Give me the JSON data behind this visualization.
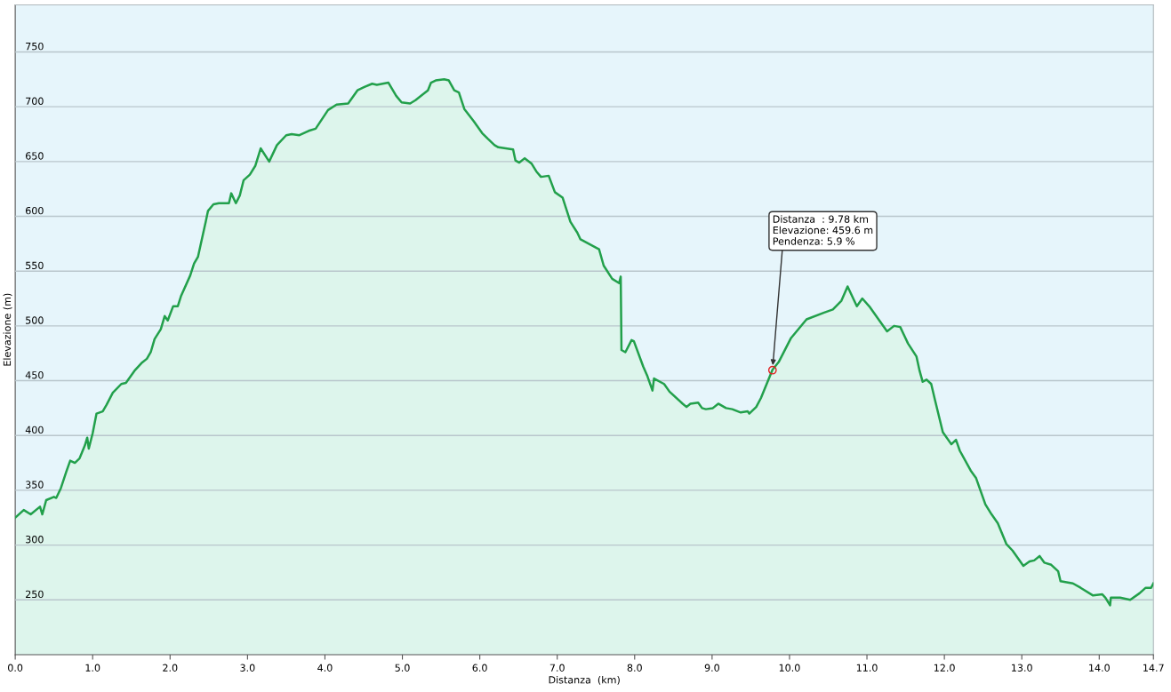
{
  "chart_data": {
    "type": "area",
    "xlabel": "Distanza  (km)",
    "ylabel": "Elevazione (m)",
    "xlim": [
      0,
      14.7
    ],
    "ylim": [
      200,
      793
    ],
    "xticks": [
      {
        "value": 0,
        "label": "0.0"
      },
      {
        "value": 1,
        "label": "1.0"
      },
      {
        "value": 2,
        "label": "2.0"
      },
      {
        "value": 3,
        "label": "3.0"
      },
      {
        "value": 4,
        "label": "4.0"
      },
      {
        "value": 5,
        "label": "5.0"
      },
      {
        "value": 6,
        "label": "6.0"
      },
      {
        "value": 7,
        "label": "7.0"
      },
      {
        "value": 8,
        "label": "8.0"
      },
      {
        "value": 9,
        "label": "9.0"
      },
      {
        "value": 10,
        "label": "10.0"
      },
      {
        "value": 11,
        "label": "11.0"
      },
      {
        "value": 12,
        "label": "12.0"
      },
      {
        "value": 13,
        "label": "13.0"
      },
      {
        "value": 14,
        "label": "14.0"
      },
      14.7
    ],
    "yticks": [
      250,
      300,
      350,
      400,
      450,
      500,
      550,
      600,
      650,
      700,
      750
    ],
    "grid": "y",
    "marker": "none",
    "line_style": "solid",
    "series": [
      {
        "color": "#22a04b",
        "x": [
          0.0,
          0.11,
          0.2,
          0.32,
          0.35,
          0.4,
          0.5,
          0.53,
          0.59,
          0.66,
          0.71,
          0.77,
          0.83,
          0.9,
          0.93,
          0.95,
          1.0,
          1.05,
          1.13,
          1.18,
          1.26,
          1.37,
          1.43,
          1.54,
          1.63,
          1.7,
          1.75,
          1.8,
          1.88,
          1.93,
          1.97,
          2.04,
          2.1,
          2.14,
          2.26,
          2.31,
          2.36,
          2.46,
          2.49,
          2.56,
          2.63,
          2.76,
          2.79,
          2.85,
          2.9,
          2.95,
          3.03,
          3.1,
          3.17,
          3.28,
          3.38,
          3.5,
          3.57,
          3.67,
          3.79,
          3.88,
          4.04,
          4.15,
          4.3,
          4.42,
          4.51,
          4.61,
          4.67,
          4.82,
          4.92,
          4.99,
          5.1,
          5.17,
          5.26,
          5.33,
          5.37,
          5.43,
          5.54,
          5.6,
          5.67,
          5.73,
          5.8,
          5.92,
          6.03,
          6.1,
          6.19,
          6.24,
          6.43,
          6.46,
          6.51,
          6.58,
          6.67,
          6.73,
          6.79,
          6.89,
          6.97,
          7.07,
          7.17,
          7.26,
          7.3,
          7.54,
          7.6,
          7.71,
          7.8,
          7.82,
          7.83,
          7.88,
          7.96,
          7.99,
          8.11,
          8.16,
          8.23,
          8.25,
          8.38,
          8.45,
          8.62,
          8.67,
          8.72,
          8.82,
          8.87,
          8.92,
          9.01,
          9.08,
          9.18,
          9.26,
          9.37,
          9.46,
          9.48,
          9.57,
          9.63,
          9.78,
          9.86,
          10.02,
          10.22,
          10.44,
          10.56,
          10.67,
          10.75,
          10.87,
          10.94,
          11.04,
          11.16,
          11.26,
          11.35,
          11.43,
          11.53,
          11.64,
          11.68,
          11.72,
          11.77,
          11.83,
          11.88,
          11.98,
          12.09,
          12.15,
          12.2,
          12.34,
          12.41,
          12.53,
          12.61,
          12.69,
          12.8,
          12.88,
          13.02,
          13.1,
          13.16,
          13.23,
          13.29,
          13.38,
          13.47,
          13.5,
          13.66,
          13.76,
          13.92,
          14.04,
          14.08,
          14.14,
          14.15,
          14.27,
          14.4,
          14.52,
          14.6,
          14.67,
          14.7
        ],
        "values": [
          325,
          332,
          328,
          335,
          328,
          341,
          344,
          343,
          352,
          367,
          377,
          375,
          379,
          391,
          398,
          388,
          402,
          420,
          422,
          428,
          439,
          447,
          448,
          459,
          466,
          470,
          476,
          488,
          497,
          509,
          505,
          518,
          518,
          527,
          546,
          557,
          563,
          595,
          605,
          611,
          612,
          612,
          621,
          612,
          619,
          633,
          638,
          646,
          662,
          650,
          665,
          674,
          675,
          674,
          678,
          680,
          697,
          702,
          703,
          715,
          718,
          721,
          720,
          722,
          710,
          704,
          703,
          706,
          711,
          715,
          722,
          724,
          725,
          724,
          715,
          713,
          698,
          687,
          676,
          671,
          665,
          663,
          661,
          651,
          649,
          653,
          648,
          641,
          636,
          637,
          622,
          617,
          595,
          585,
          579,
          570,
          555,
          543,
          539,
          545,
          478,
          476,
          487,
          486,
          463,
          455,
          441,
          452,
          447,
          440,
          429,
          426,
          429,
          430,
          425,
          424,
          425,
          429,
          425,
          424,
          421,
          422,
          420,
          426,
          434,
          460,
          467,
          489,
          506,
          512,
          515,
          523,
          536,
          518,
          525,
          517,
          505,
          495,
          500,
          499,
          484,
          472,
          459,
          449,
          451,
          447,
          432,
          403,
          392,
          396,
          386,
          368,
          361,
          337,
          328,
          320,
          301,
          295,
          281,
          285,
          286,
          290,
          284,
          282,
          276,
          267,
          265,
          261,
          254,
          255,
          252,
          245,
          252,
          252,
          250,
          256,
          261,
          261,
          265
        ]
      }
    ],
    "annotations": [
      {
        "text": "Distanza  : 9.78 km\nElevazione: 459.6 m\nPendenza: 5.9 %",
        "x": 9.78,
        "y": 459.6
      }
    ]
  }
}
